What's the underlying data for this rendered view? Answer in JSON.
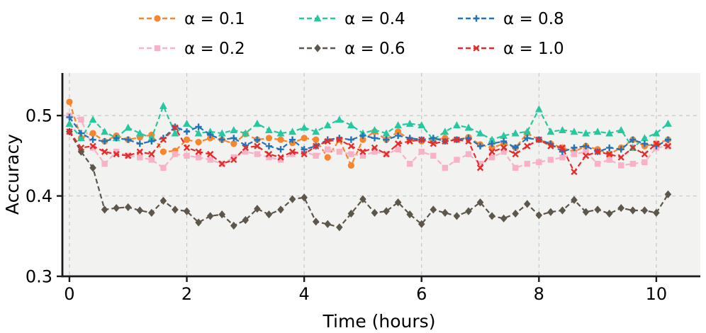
{
  "chart_data": {
    "type": "line",
    "title": "",
    "xlabel": "Time (hours)",
    "ylabel": "Accuracy",
    "xlim": [
      -0.12,
      10.75
    ],
    "ylim": [
      0.3,
      0.553
    ],
    "xticks": [
      0,
      2,
      4,
      6,
      8,
      10
    ],
    "yticks": [
      0.3,
      0.4,
      0.5
    ],
    "grid": true,
    "grid_style": "dashed",
    "grid_color": "#c8c8c8",
    "plot_background": "#f2f2f0",
    "axis_color": "#1a1a1a",
    "legend_position": "top-center",
    "legend_columns": 3,
    "x": [
      0,
      0.2,
      0.4,
      0.6,
      0.8,
      1.0,
      1.2,
      1.4,
      1.6,
      1.8,
      2.0,
      2.2,
      2.4,
      2.6,
      2.8,
      3.0,
      3.2,
      3.4,
      3.6,
      3.8,
      4.0,
      4.2,
      4.4,
      4.6,
      4.8,
      5.0,
      5.2,
      5.4,
      5.6,
      5.8,
      6.0,
      6.2,
      6.4,
      6.6,
      6.8,
      7.0,
      7.2,
      7.4,
      7.6,
      7.8,
      8.0,
      8.2,
      8.4,
      8.6,
      8.8,
      9.0,
      9.2,
      9.4,
      9.6,
      9.8,
      10.0,
      10.2
    ],
    "series": [
      {
        "name": "α = 0.1",
        "color": "#f5862e",
        "marker": "circle",
        "linestyle": "dashed",
        "values": [
          0.517,
          0.472,
          0.478,
          0.468,
          0.475,
          0.47,
          0.473,
          0.476,
          0.455,
          0.456,
          0.47,
          0.467,
          0.472,
          0.47,
          0.465,
          0.477,
          0.47,
          0.472,
          0.47,
          0.466,
          0.472,
          0.47,
          0.448,
          0.47,
          0.438,
          0.47,
          0.48,
          0.47,
          0.48,
          0.47,
          0.468,
          0.47,
          0.472,
          0.47,
          0.473,
          0.464,
          0.46,
          0.465,
          0.46,
          0.478,
          0.47,
          0.465,
          0.46,
          0.455,
          0.462,
          0.458,
          0.452,
          0.46,
          0.47,
          0.462,
          0.465,
          0.47
        ]
      },
      {
        "name": "α = 0.2",
        "color": "#f9b1c6",
        "marker": "square",
        "linestyle": "dashed",
        "values": [
          0.5,
          0.495,
          0.46,
          0.44,
          0.455,
          0.45,
          0.448,
          0.445,
          0.435,
          0.452,
          0.45,
          0.448,
          0.445,
          0.44,
          0.448,
          0.455,
          0.452,
          0.448,
          0.445,
          0.452,
          0.455,
          0.45,
          0.458,
          0.455,
          0.452,
          0.45,
          0.455,
          0.452,
          0.458,
          0.44,
          0.455,
          0.45,
          0.435,
          0.445,
          0.452,
          0.44,
          0.448,
          0.455,
          0.435,
          0.44,
          0.442,
          0.445,
          0.448,
          0.452,
          0.455,
          0.44,
          0.445,
          0.438,
          0.44,
          0.442,
          0.46,
          0.462
        ]
      },
      {
        "name": "α = 0.4",
        "color": "#27c79f",
        "marker": "triangle",
        "linestyle": "dashed",
        "values": [
          0.49,
          0.472,
          0.495,
          0.48,
          0.472,
          0.485,
          0.478,
          0.472,
          0.512,
          0.478,
          0.49,
          0.478,
          0.48,
          0.478,
          0.482,
          0.478,
          0.49,
          0.482,
          0.478,
          0.48,
          0.485,
          0.48,
          0.488,
          0.495,
          0.488,
          0.478,
          0.482,
          0.478,
          0.488,
          0.49,
          0.488,
          0.47,
          0.48,
          0.488,
          0.485,
          0.478,
          0.47,
          0.475,
          0.478,
          0.48,
          0.508,
          0.48,
          0.482,
          0.48,
          0.478,
          0.48,
          0.478,
          0.482,
          0.46,
          0.472,
          0.478,
          0.49
        ]
      },
      {
        "name": "α = 0.6",
        "color": "#5d564a",
        "marker": "diamond",
        "linestyle": "dashed",
        "values": [
          0.48,
          0.455,
          0.435,
          0.383,
          0.385,
          0.386,
          0.382,
          0.379,
          0.394,
          0.383,
          0.381,
          0.367,
          0.375,
          0.377,
          0.363,
          0.37,
          0.384,
          0.377,
          0.383,
          0.396,
          0.398,
          0.368,
          0.365,
          0.361,
          0.378,
          0.396,
          0.379,
          0.381,
          0.392,
          0.377,
          0.365,
          0.383,
          0.379,
          0.375,
          0.381,
          0.392,
          0.375,
          0.372,
          0.378,
          0.39,
          0.376,
          0.38,
          0.382,
          0.395,
          0.38,
          0.383,
          0.378,
          0.385,
          0.382,
          0.382,
          0.379,
          0.402
        ]
      },
      {
        "name": "α = 0.8",
        "color": "#2273b8",
        "marker": "plus",
        "linestyle": "dashed",
        "values": [
          0.498,
          0.478,
          0.47,
          0.468,
          0.472,
          0.47,
          0.465,
          0.468,
          0.472,
          0.486,
          0.48,
          0.486,
          0.476,
          0.47,
          0.472,
          0.463,
          0.47,
          0.462,
          0.458,
          0.47,
          0.458,
          0.462,
          0.47,
          0.472,
          0.47,
          0.475,
          0.472,
          0.47,
          0.475,
          0.472,
          0.47,
          0.472,
          0.468,
          0.47,
          0.472,
          0.462,
          0.465,
          0.468,
          0.46,
          0.472,
          0.47,
          0.465,
          0.455,
          0.46,
          0.462,
          0.455,
          0.46,
          0.458,
          0.47,
          0.465,
          0.462,
          0.47
        ]
      },
      {
        "name": "α = 1.0",
        "color": "#e32d2d",
        "marker": "x",
        "linestyle": "dashed",
        "values": [
          0.48,
          0.46,
          0.462,
          0.455,
          0.452,
          0.45,
          0.455,
          0.452,
          0.47,
          0.485,
          0.46,
          0.455,
          0.452,
          0.44,
          0.445,
          0.46,
          0.462,
          0.452,
          0.448,
          0.455,
          0.452,
          0.462,
          0.468,
          0.47,
          0.462,
          0.455,
          0.46,
          0.452,
          0.465,
          0.468,
          0.47,
          0.465,
          0.468,
          0.47,
          0.468,
          0.435,
          0.455,
          0.46,
          0.452,
          0.462,
          0.47,
          0.462,
          0.46,
          0.43,
          0.45,
          0.455,
          0.452,
          0.448,
          0.46,
          0.452,
          0.465,
          0.462
        ]
      }
    ]
  }
}
